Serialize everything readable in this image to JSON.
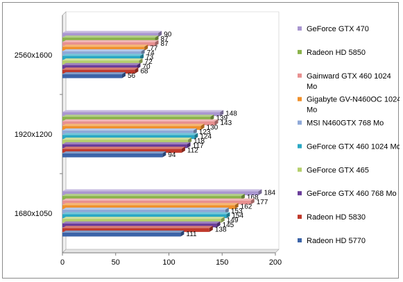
{
  "chart_data": {
    "type": "bar",
    "orientation": "horizontal",
    "categories": [
      "2560x1600",
      "1920x1200",
      "1680x1050"
    ],
    "series": [
      {
        "name": "Radeon HD 5770",
        "color": "#3c64a8",
        "values": [
          56,
          94,
          111
        ]
      },
      {
        "name": "Radeon HD 5830",
        "color": "#c0392b",
        "values": [
          68,
          112,
          138
        ]
      },
      {
        "name": "GeForce GTX 460 768 Mo",
        "color": "#6a3d9a",
        "values": [
          70,
          117,
          145
        ]
      },
      {
        "name": "GeForce GTX 465",
        "color": "#b5cf6b",
        "values": [
          72,
          118,
          149
        ]
      },
      {
        "name": "GeForce GTX 460 1024 Mo",
        "color": "#2aa8c4",
        "values": [
          73,
          124,
          154
        ]
      },
      {
        "name": "MSI N460GTX 768 Mo",
        "color": "#8fa9d8",
        "values": [
          74,
          123,
          153
        ]
      },
      {
        "name": "Gigabyte GV-N460OC 1024 Mo",
        "color": "#f0902a",
        "values": [
          77,
          130,
          162
        ]
      },
      {
        "name": "Gainward GTX 460 1024 Mo",
        "color": "#e89090",
        "values": [
          87,
          143,
          177
        ]
      },
      {
        "name": "Radeon HD 5850",
        "color": "#8ab34a",
        "values": [
          87,
          139,
          168
        ]
      },
      {
        "name": "GeForce GTX 470",
        "color": "#a996d0",
        "values": [
          90,
          148,
          184
        ]
      }
    ],
    "xlim": [
      0,
      200
    ],
    "xticks": [
      0,
      50,
      100,
      150,
      200
    ],
    "grid": false,
    "legend_position": "right",
    "title": "",
    "xlabel": "",
    "ylabel": ""
  }
}
